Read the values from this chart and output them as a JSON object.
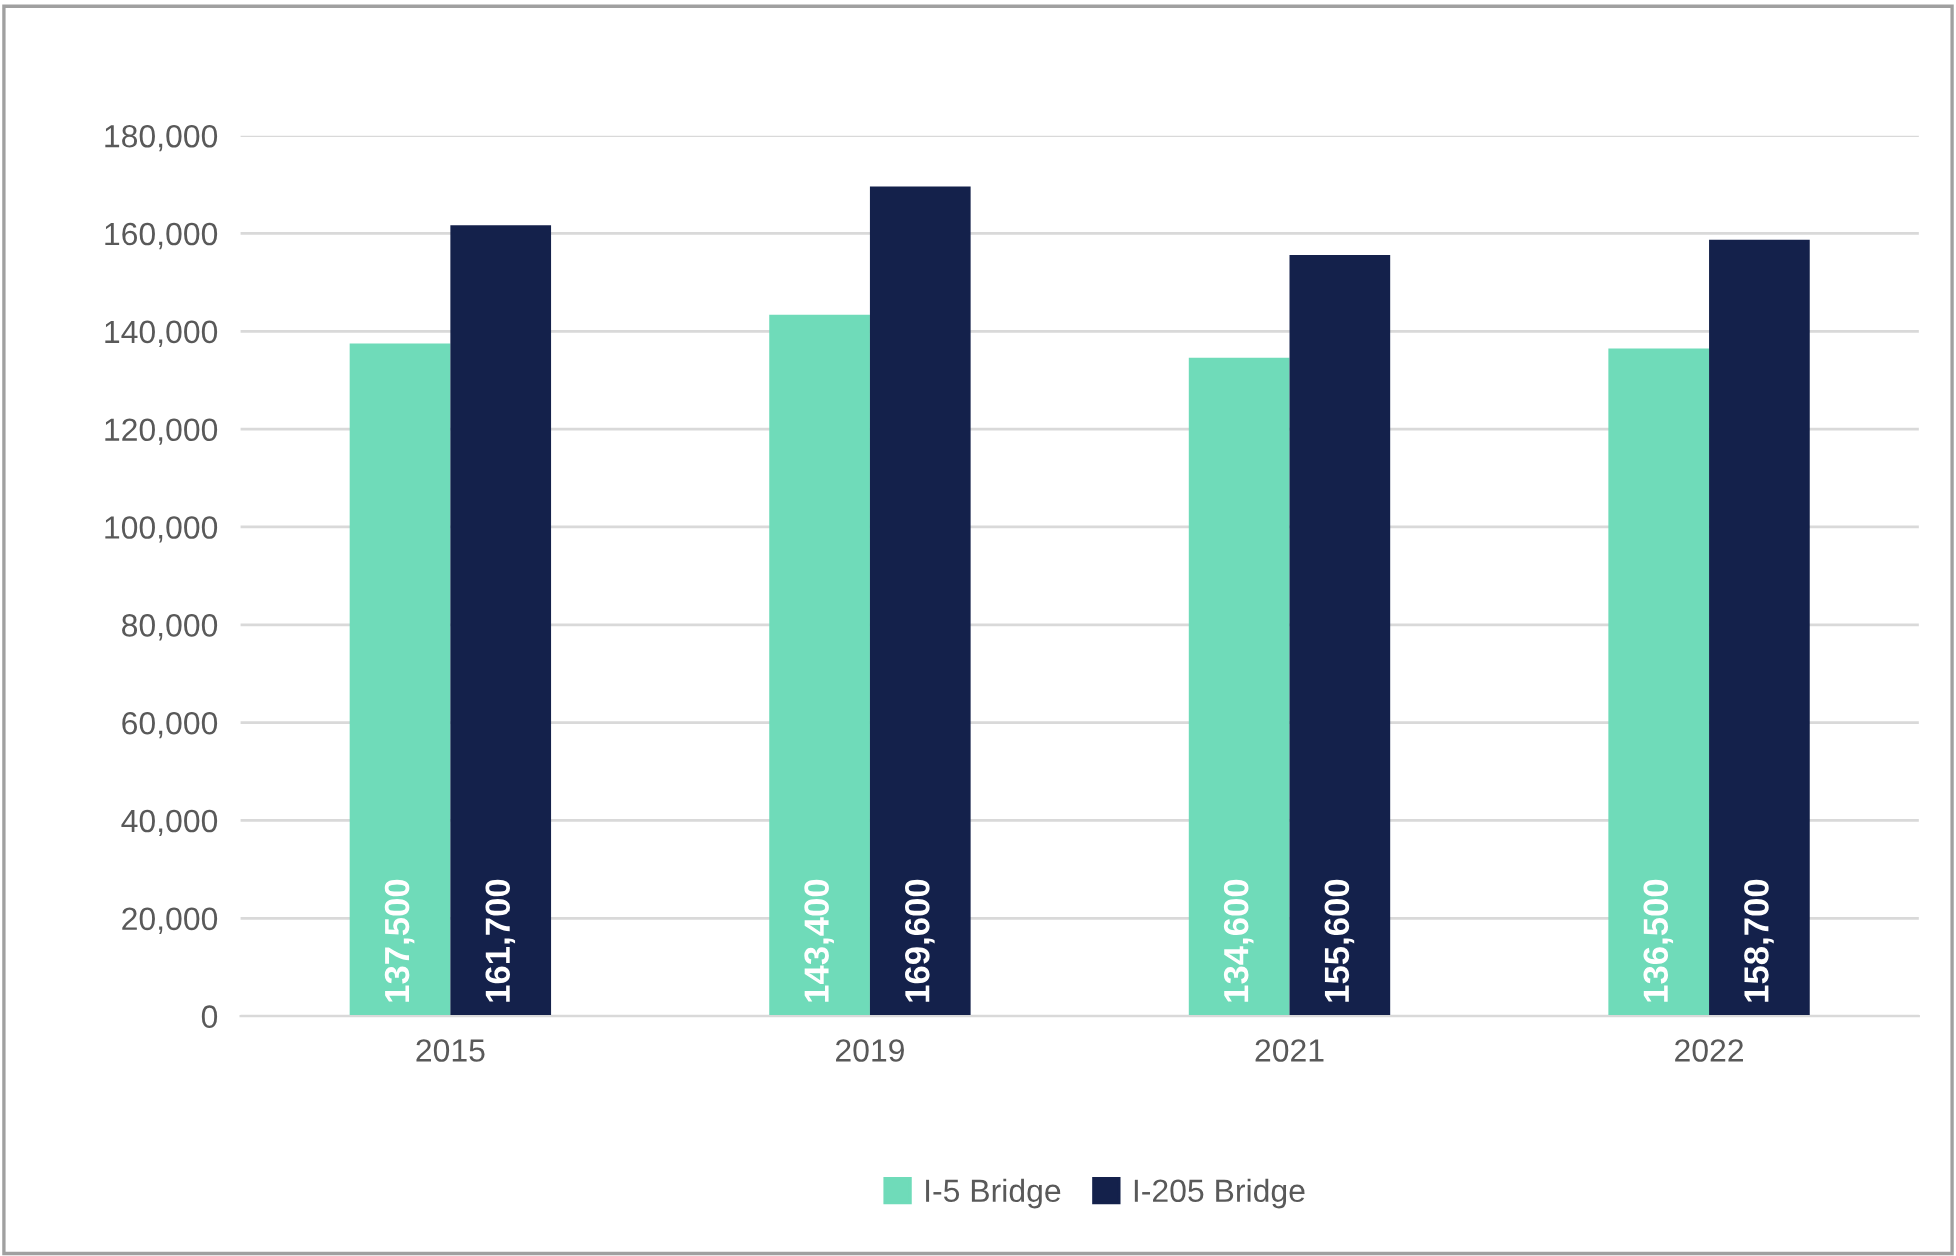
{
  "chart_data": {
    "type": "bar",
    "categories": [
      "2015",
      "2019",
      "2021",
      "2022"
    ],
    "series": [
      {
        "name": "I-5 Bridge",
        "color": "#6fdbb9",
        "values": [
          137500,
          143400,
          134600,
          136500
        ],
        "value_labels": [
          "137,500",
          "143,400",
          "134,600",
          "136,500"
        ]
      },
      {
        "name": "I-205 Bridge",
        "color": "#14214b",
        "values": [
          161700,
          169600,
          155600,
          158700
        ],
        "value_labels": [
          "161,700",
          "169,600",
          "155,600",
          "158,700"
        ]
      }
    ],
    "ylim": [
      0,
      180000
    ],
    "yticks": [
      0,
      {
        "value": 20000,
        "label": "20,000"
      },
      {
        "value": 40000,
        "label": "40,000"
      },
      {
        "value": 60000,
        "label": "60,000"
      },
      {
        "value": 80000,
        "label": "80,000"
      },
      {
        "value": 100000,
        "label": "100,000"
      },
      {
        "value": 120000,
        "label": "120,000"
      },
      {
        "value": 140000,
        "label": "140,000"
      },
      {
        "value": 160000,
        "label": "160,000"
      },
      {
        "value": 180000,
        "label": "180,000"
      }
    ],
    "grid": "y",
    "legend": "bottom"
  }
}
